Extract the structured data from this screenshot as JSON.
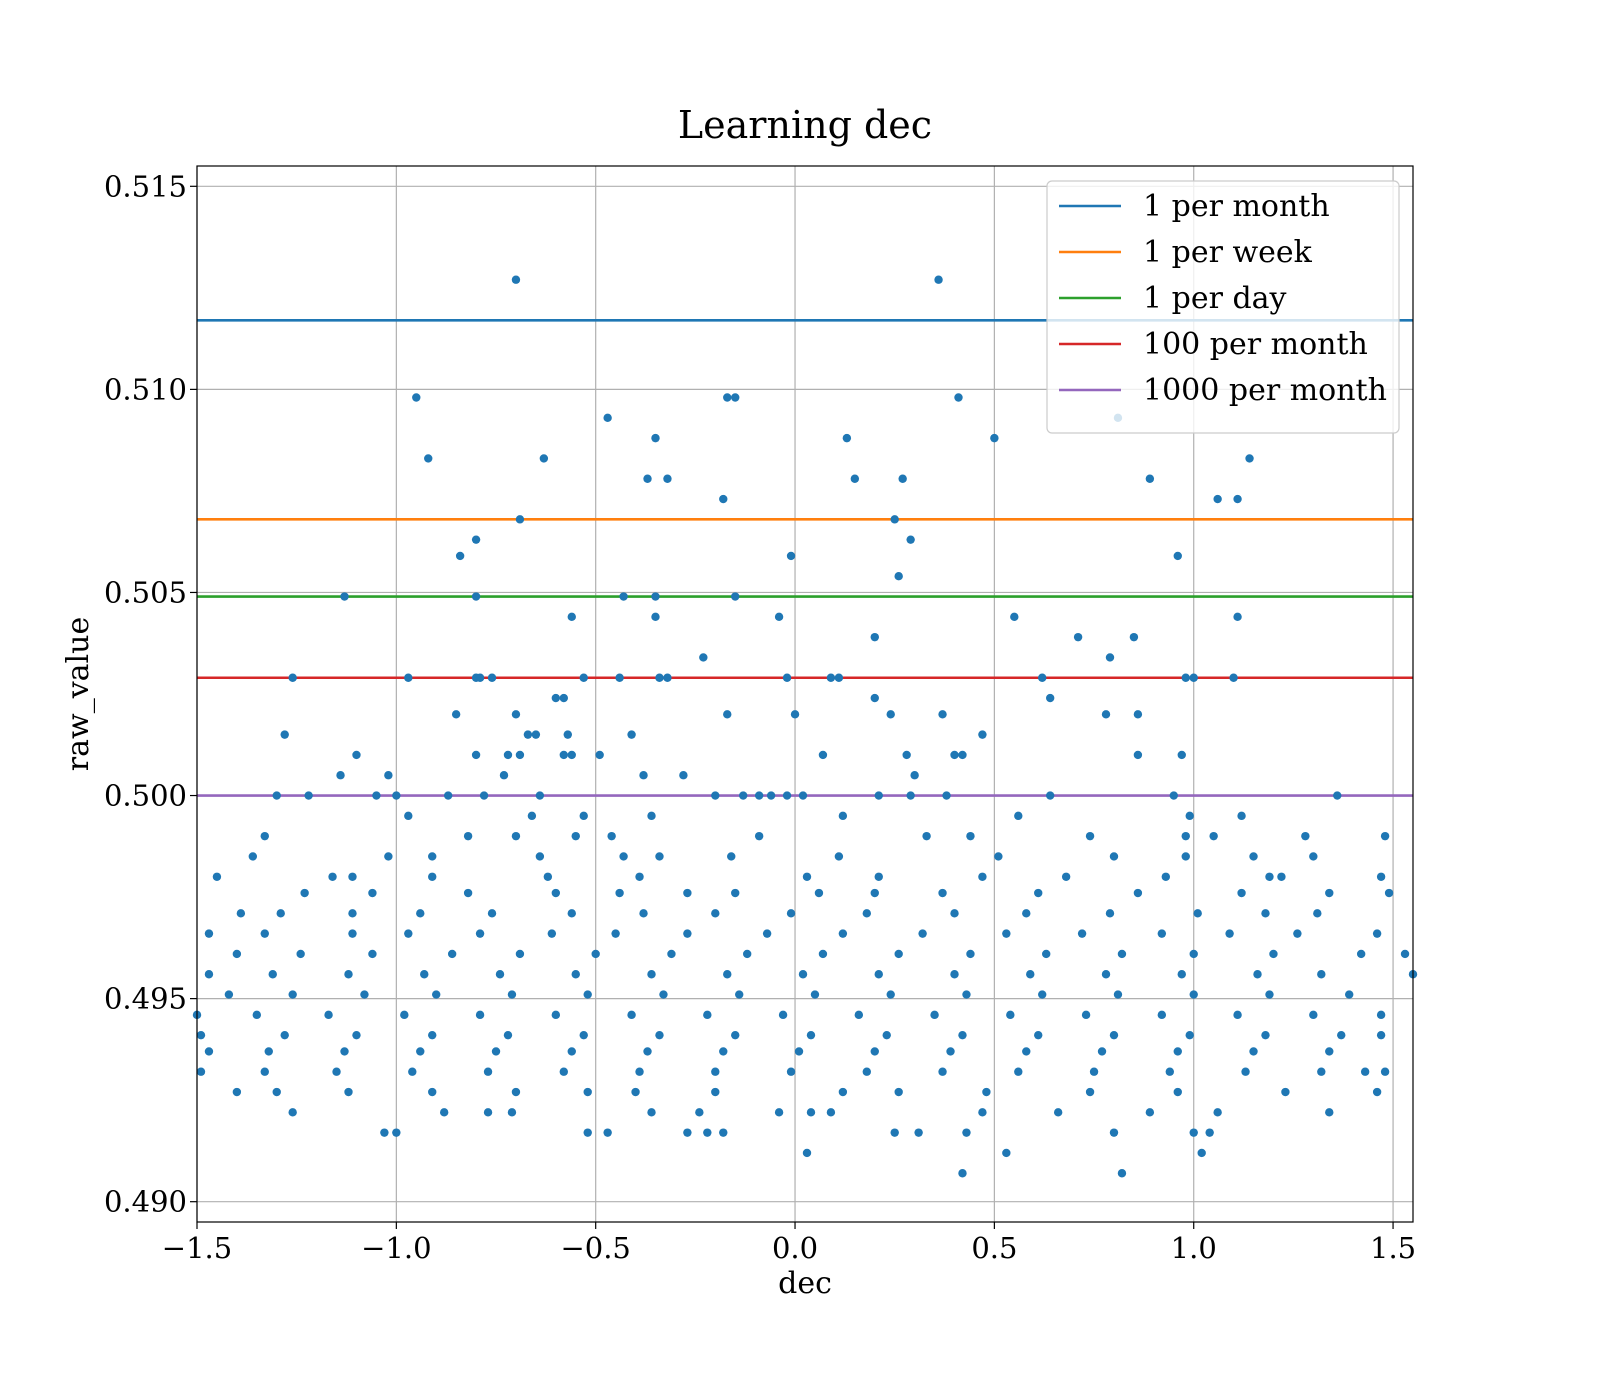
{
  "chart_data": {
    "type": "scatter",
    "title": "Learning dec",
    "xlabel": "dec",
    "ylabel": "raw_value",
    "xlim": [
      -1.5,
      1.55
    ],
    "ylim": [
      0.4895,
      0.5155
    ],
    "grid": true,
    "xticks": [
      -1.5,
      -1.0,
      -0.5,
      0.0,
      0.5,
      1.0,
      1.5
    ],
    "xtick_labels": [
      "−1.5",
      "−1.0",
      "−0.5",
      "0.0",
      "0.5",
      "1.0",
      "1.5"
    ],
    "yticks": [
      0.49,
      0.495,
      0.5,
      0.505,
      0.51,
      0.515
    ],
    "ytick_labels": [
      "0.490",
      "0.495",
      "0.500",
      "0.505",
      "0.510",
      "0.515"
    ],
    "legend_placement": "top-right",
    "scatter_color": "#1f77b4",
    "hlines": [
      {
        "name": "1 per month",
        "y": 0.5117,
        "color": "#1f77b4"
      },
      {
        "name": "1 per week",
        "y": 0.5068,
        "color": "#ff7f0e"
      },
      {
        "name": "1 per day",
        "y": 0.5049,
        "color": "#2ca02c"
      },
      {
        "name": "100 per month",
        "y": 0.5029,
        "color": "#d62728"
      },
      {
        "name": "1000 per month",
        "y": 0.5,
        "color": "#9467bd"
      }
    ],
    "points": [
      [
        -0.7,
        0.5127
      ],
      [
        0.36,
        0.5127
      ],
      [
        -0.95,
        0.5098
      ],
      [
        -0.17,
        0.5098
      ],
      [
        -0.15,
        0.5098
      ],
      [
        0.41,
        0.5098
      ],
      [
        -0.47,
        0.5093
      ],
      [
        0.81,
        0.5093
      ],
      [
        -0.35,
        0.5088
      ],
      [
        0.13,
        0.5088
      ],
      [
        0.5,
        0.5088
      ],
      [
        -0.92,
        0.5083
      ],
      [
        -0.63,
        0.5083
      ],
      [
        1.14,
        0.5083
      ],
      [
        -0.37,
        0.5078
      ],
      [
        -0.32,
        0.5078
      ],
      [
        0.15,
        0.5078
      ],
      [
        0.27,
        0.5078
      ],
      [
        0.89,
        0.5078
      ],
      [
        -0.18,
        0.5073
      ],
      [
        1.06,
        0.5073
      ],
      [
        1.11,
        0.5073
      ],
      [
        -0.69,
        0.5068
      ],
      [
        0.25,
        0.5068
      ],
      [
        -0.8,
        0.5063
      ],
      [
        0.29,
        0.5063
      ],
      [
        -0.84,
        0.5059
      ],
      [
        -0.01,
        0.5059
      ],
      [
        0.96,
        0.5059
      ],
      [
        0.26,
        0.5054
      ],
      [
        -1.13,
        0.5049
      ],
      [
        -0.8,
        0.5049
      ],
      [
        -0.43,
        0.5049
      ],
      [
        -0.35,
        0.5049
      ],
      [
        -0.15,
        0.5049
      ],
      [
        -0.56,
        0.5044
      ],
      [
        -0.35,
        0.5044
      ],
      [
        -0.04,
        0.5044
      ],
      [
        0.55,
        0.5044
      ],
      [
        1.11,
        0.5044
      ],
      [
        0.2,
        0.5039
      ],
      [
        0.71,
        0.5039
      ],
      [
        0.85,
        0.5039
      ],
      [
        -0.23,
        0.5034
      ],
      [
        0.79,
        0.5034
      ],
      [
        -1.26,
        0.5029
      ],
      [
        -0.97,
        0.5029
      ],
      [
        -0.8,
        0.5029
      ],
      [
        -0.79,
        0.5029
      ],
      [
        -0.76,
        0.5029
      ],
      [
        -0.53,
        0.5029
      ],
      [
        -0.44,
        0.5029
      ],
      [
        -0.34,
        0.5029
      ],
      [
        -0.32,
        0.5029
      ],
      [
        -0.02,
        0.5029
      ],
      [
        0.09,
        0.5029
      ],
      [
        0.11,
        0.5029
      ],
      [
        0.62,
        0.5029
      ],
      [
        0.98,
        0.5029
      ],
      [
        1.0,
        0.5029
      ],
      [
        1.1,
        0.5029
      ],
      [
        -0.6,
        0.5024
      ],
      [
        -0.58,
        0.5024
      ],
      [
        0.2,
        0.5024
      ],
      [
        0.64,
        0.5024
      ],
      [
        -0.85,
        0.502
      ],
      [
        -0.7,
        0.502
      ],
      [
        -0.17,
        0.502
      ],
      [
        0.0,
        0.502
      ],
      [
        0.24,
        0.502
      ],
      [
        0.37,
        0.502
      ],
      [
        0.78,
        0.502
      ],
      [
        0.86,
        0.502
      ],
      [
        -1.28,
        0.5015
      ],
      [
        -0.67,
        0.5015
      ],
      [
        -0.65,
        0.5015
      ],
      [
        -0.57,
        0.5015
      ],
      [
        -0.41,
        0.5015
      ],
      [
        0.47,
        0.5015
      ],
      [
        -1.1,
        0.501
      ],
      [
        -0.8,
        0.501
      ],
      [
        -0.72,
        0.501
      ],
      [
        -0.69,
        0.501
      ],
      [
        -0.58,
        0.501
      ],
      [
        -0.56,
        0.501
      ],
      [
        -0.49,
        0.501
      ],
      [
        0.07,
        0.501
      ],
      [
        0.28,
        0.501
      ],
      [
        0.4,
        0.501
      ],
      [
        0.42,
        0.501
      ],
      [
        0.86,
        0.501
      ],
      [
        0.97,
        0.501
      ],
      [
        -1.14,
        0.5005
      ],
      [
        -1.02,
        0.5005
      ],
      [
        -0.73,
        0.5005
      ],
      [
        -0.38,
        0.5005
      ],
      [
        -0.28,
        0.5005
      ],
      [
        0.3,
        0.5005
      ],
      [
        -1.3,
        0.5
      ],
      [
        -1.22,
        0.5
      ],
      [
        -1.05,
        0.5
      ],
      [
        -1.0,
        0.5
      ],
      [
        -0.87,
        0.5
      ],
      [
        -0.78,
        0.5
      ],
      [
        -0.64,
        0.5
      ],
      [
        -0.2,
        0.5
      ],
      [
        -0.13,
        0.5
      ],
      [
        -0.09,
        0.5
      ],
      [
        -0.06,
        0.5
      ],
      [
        -0.02,
        0.5
      ],
      [
        0.02,
        0.5
      ],
      [
        0.21,
        0.5
      ],
      [
        0.29,
        0.5
      ],
      [
        0.38,
        0.5
      ],
      [
        0.64,
        0.5
      ],
      [
        0.95,
        0.5
      ],
      [
        1.36,
        0.5
      ],
      [
        -0.97,
        0.4995
      ],
      [
        -0.66,
        0.4995
      ],
      [
        -0.53,
        0.4995
      ],
      [
        -0.36,
        0.4995
      ],
      [
        0.12,
        0.4995
      ],
      [
        0.56,
        0.4995
      ],
      [
        0.99,
        0.4995
      ],
      [
        1.12,
        0.4995
      ],
      [
        -1.33,
        0.499
      ],
      [
        -0.82,
        0.499
      ],
      [
        -0.7,
        0.499
      ],
      [
        -0.55,
        0.499
      ],
      [
        -0.46,
        0.499
      ],
      [
        -0.09,
        0.499
      ],
      [
        0.33,
        0.499
      ],
      [
        0.44,
        0.499
      ],
      [
        0.74,
        0.499
      ],
      [
        0.98,
        0.499
      ],
      [
        1.05,
        0.499
      ],
      [
        1.28,
        0.499
      ],
      [
        1.48,
        0.499
      ],
      [
        -1.36,
        0.4985
      ],
      [
        -1.02,
        0.4985
      ],
      [
        -0.91,
        0.4985
      ],
      [
        -0.64,
        0.4985
      ],
      [
        -0.43,
        0.4985
      ],
      [
        -0.34,
        0.4985
      ],
      [
        -0.16,
        0.4985
      ],
      [
        0.11,
        0.4985
      ],
      [
        0.51,
        0.4985
      ],
      [
        0.8,
        0.4985
      ],
      [
        0.98,
        0.4985
      ],
      [
        1.15,
        0.4985
      ],
      [
        1.3,
        0.4985
      ],
      [
        -1.45,
        0.498
      ],
      [
        -1.16,
        0.498
      ],
      [
        -1.11,
        0.498
      ],
      [
        -0.91,
        0.498
      ],
      [
        -0.62,
        0.498
      ],
      [
        -0.39,
        0.498
      ],
      [
        0.03,
        0.498
      ],
      [
        0.21,
        0.498
      ],
      [
        0.47,
        0.498
      ],
      [
        0.68,
        0.498
      ],
      [
        0.93,
        0.498
      ],
      [
        1.19,
        0.498
      ],
      [
        1.22,
        0.498
      ],
      [
        1.47,
        0.498
      ],
      [
        -1.23,
        0.4976
      ],
      [
        -1.06,
        0.4976
      ],
      [
        -0.82,
        0.4976
      ],
      [
        -0.6,
        0.4976
      ],
      [
        -0.44,
        0.4976
      ],
      [
        -0.27,
        0.4976
      ],
      [
        -0.15,
        0.4976
      ],
      [
        0.06,
        0.4976
      ],
      [
        0.2,
        0.4976
      ],
      [
        0.37,
        0.4976
      ],
      [
        0.61,
        0.4976
      ],
      [
        0.86,
        0.4976
      ],
      [
        1.12,
        0.4976
      ],
      [
        1.34,
        0.4976
      ],
      [
        1.49,
        0.4976
      ],
      [
        -1.39,
        0.4971
      ],
      [
        -1.29,
        0.4971
      ],
      [
        -1.11,
        0.4971
      ],
      [
        -0.94,
        0.4971
      ],
      [
        -0.76,
        0.4971
      ],
      [
        -0.56,
        0.4971
      ],
      [
        -0.38,
        0.4971
      ],
      [
        -0.2,
        0.4971
      ],
      [
        -0.01,
        0.4971
      ],
      [
        0.18,
        0.4971
      ],
      [
        0.4,
        0.4971
      ],
      [
        0.58,
        0.4971
      ],
      [
        0.79,
        0.4971
      ],
      [
        1.01,
        0.4971
      ],
      [
        1.18,
        0.4971
      ],
      [
        1.31,
        0.4971
      ],
      [
        -1.47,
        0.4966
      ],
      [
        -1.33,
        0.4966
      ],
      [
        -1.11,
        0.4966
      ],
      [
        -0.97,
        0.4966
      ],
      [
        -0.79,
        0.4966
      ],
      [
        -0.61,
        0.4966
      ],
      [
        -0.45,
        0.4966
      ],
      [
        -0.27,
        0.4966
      ],
      [
        -0.07,
        0.4966
      ],
      [
        0.12,
        0.4966
      ],
      [
        0.32,
        0.4966
      ],
      [
        0.53,
        0.4966
      ],
      [
        0.72,
        0.4966
      ],
      [
        0.92,
        0.4966
      ],
      [
        1.09,
        0.4966
      ],
      [
        1.26,
        0.4966
      ],
      [
        1.46,
        0.4966
      ],
      [
        -1.4,
        0.4961
      ],
      [
        -1.24,
        0.4961
      ],
      [
        -1.06,
        0.4961
      ],
      [
        -0.86,
        0.4961
      ],
      [
        -0.69,
        0.4961
      ],
      [
        -0.5,
        0.4961
      ],
      [
        -0.31,
        0.4961
      ],
      [
        -0.12,
        0.4961
      ],
      [
        0.07,
        0.4961
      ],
      [
        0.26,
        0.4961
      ],
      [
        0.44,
        0.4961
      ],
      [
        0.63,
        0.4961
      ],
      [
        0.82,
        0.4961
      ],
      [
        1.0,
        0.4961
      ],
      [
        1.2,
        0.4961
      ],
      [
        1.42,
        0.4961
      ],
      [
        1.53,
        0.4961
      ],
      [
        -1.47,
        0.4956
      ],
      [
        -1.31,
        0.4956
      ],
      [
        -1.12,
        0.4956
      ],
      [
        -0.93,
        0.4956
      ],
      [
        -0.74,
        0.4956
      ],
      [
        -0.55,
        0.4956
      ],
      [
        -0.36,
        0.4956
      ],
      [
        -0.17,
        0.4956
      ],
      [
        0.02,
        0.4956
      ],
      [
        0.21,
        0.4956
      ],
      [
        0.4,
        0.4956
      ],
      [
        0.59,
        0.4956
      ],
      [
        0.78,
        0.4956
      ],
      [
        0.97,
        0.4956
      ],
      [
        1.16,
        0.4956
      ],
      [
        1.32,
        0.4956
      ],
      [
        1.55,
        0.4956
      ],
      [
        -1.42,
        0.4951
      ],
      [
        -1.26,
        0.4951
      ],
      [
        -1.08,
        0.4951
      ],
      [
        -0.9,
        0.4951
      ],
      [
        -0.71,
        0.4951
      ],
      [
        -0.52,
        0.4951
      ],
      [
        -0.33,
        0.4951
      ],
      [
        -0.14,
        0.4951
      ],
      [
        0.05,
        0.4951
      ],
      [
        0.24,
        0.4951
      ],
      [
        0.43,
        0.4951
      ],
      [
        0.62,
        0.4951
      ],
      [
        0.81,
        0.4951
      ],
      [
        1.0,
        0.4951
      ],
      [
        1.19,
        0.4951
      ],
      [
        1.39,
        0.4951
      ],
      [
        -1.5,
        0.4946
      ],
      [
        -1.35,
        0.4946
      ],
      [
        -1.17,
        0.4946
      ],
      [
        -0.98,
        0.4946
      ],
      [
        -0.79,
        0.4946
      ],
      [
        -0.6,
        0.4946
      ],
      [
        -0.41,
        0.4946
      ],
      [
        -0.22,
        0.4946
      ],
      [
        -0.03,
        0.4946
      ],
      [
        0.16,
        0.4946
      ],
      [
        0.35,
        0.4946
      ],
      [
        0.54,
        0.4946
      ],
      [
        0.73,
        0.4946
      ],
      [
        0.92,
        0.4946
      ],
      [
        1.11,
        0.4946
      ],
      [
        1.3,
        0.4946
      ],
      [
        1.47,
        0.4946
      ],
      [
        -1.49,
        0.4941
      ],
      [
        -1.28,
        0.4941
      ],
      [
        -1.1,
        0.4941
      ],
      [
        -0.91,
        0.4941
      ],
      [
        -0.72,
        0.4941
      ],
      [
        -0.53,
        0.4941
      ],
      [
        -0.34,
        0.4941
      ],
      [
        -0.15,
        0.4941
      ],
      [
        0.04,
        0.4941
      ],
      [
        0.23,
        0.4941
      ],
      [
        0.42,
        0.4941
      ],
      [
        0.61,
        0.4941
      ],
      [
        0.8,
        0.4941
      ],
      [
        0.99,
        0.4941
      ],
      [
        1.18,
        0.4941
      ],
      [
        1.37,
        0.4941
      ],
      [
        1.47,
        0.4941
      ],
      [
        -1.47,
        0.4937
      ],
      [
        -1.32,
        0.4937
      ],
      [
        -1.13,
        0.4937
      ],
      [
        -0.94,
        0.4937
      ],
      [
        -0.75,
        0.4937
      ],
      [
        -0.56,
        0.4937
      ],
      [
        -0.37,
        0.4937
      ],
      [
        -0.18,
        0.4937
      ],
      [
        0.01,
        0.4937
      ],
      [
        0.2,
        0.4937
      ],
      [
        0.39,
        0.4937
      ],
      [
        0.58,
        0.4937
      ],
      [
        0.77,
        0.4937
      ],
      [
        0.96,
        0.4937
      ],
      [
        1.15,
        0.4937
      ],
      [
        1.34,
        0.4937
      ],
      [
        -1.49,
        0.4932
      ],
      [
        -1.33,
        0.4932
      ],
      [
        -1.15,
        0.4932
      ],
      [
        -0.96,
        0.4932
      ],
      [
        -0.77,
        0.4932
      ],
      [
        -0.58,
        0.4932
      ],
      [
        -0.39,
        0.4932
      ],
      [
        -0.2,
        0.4932
      ],
      [
        -0.01,
        0.4932
      ],
      [
        0.18,
        0.4932
      ],
      [
        0.37,
        0.4932
      ],
      [
        0.56,
        0.4932
      ],
      [
        0.75,
        0.4932
      ],
      [
        0.94,
        0.4932
      ],
      [
        1.13,
        0.4932
      ],
      [
        1.32,
        0.4932
      ],
      [
        1.43,
        0.4932
      ],
      [
        1.48,
        0.4932
      ],
      [
        -1.4,
        0.4927
      ],
      [
        -1.3,
        0.4927
      ],
      [
        -1.12,
        0.4927
      ],
      [
        -0.91,
        0.4927
      ],
      [
        -0.7,
        0.4927
      ],
      [
        -0.52,
        0.4927
      ],
      [
        -0.4,
        0.4927
      ],
      [
        -0.2,
        0.4927
      ],
      [
        0.12,
        0.4927
      ],
      [
        0.26,
        0.4927
      ],
      [
        0.48,
        0.4927
      ],
      [
        0.74,
        0.4927
      ],
      [
        0.96,
        0.4927
      ],
      [
        1.23,
        0.4927
      ],
      [
        1.46,
        0.4927
      ],
      [
        -1.26,
        0.4922
      ],
      [
        -0.88,
        0.4922
      ],
      [
        -0.77,
        0.4922
      ],
      [
        -0.71,
        0.4922
      ],
      [
        -0.36,
        0.4922
      ],
      [
        -0.24,
        0.4922
      ],
      [
        -0.04,
        0.4922
      ],
      [
        0.04,
        0.4922
      ],
      [
        0.09,
        0.4922
      ],
      [
        0.47,
        0.4922
      ],
      [
        0.66,
        0.4922
      ],
      [
        0.89,
        0.4922
      ],
      [
        1.06,
        0.4922
      ],
      [
        1.34,
        0.4922
      ],
      [
        -1.03,
        0.4917
      ],
      [
        -1.0,
        0.4917
      ],
      [
        -0.52,
        0.4917
      ],
      [
        -0.47,
        0.4917
      ],
      [
        -0.27,
        0.4917
      ],
      [
        -0.22,
        0.4917
      ],
      [
        -0.18,
        0.4917
      ],
      [
        0.25,
        0.4917
      ],
      [
        0.31,
        0.4917
      ],
      [
        0.43,
        0.4917
      ],
      [
        0.8,
        0.4917
      ],
      [
        1.0,
        0.4917
      ],
      [
        1.04,
        0.4917
      ],
      [
        0.03,
        0.4912
      ],
      [
        0.53,
        0.4912
      ],
      [
        1.02,
        0.4912
      ],
      [
        0.42,
        0.4907
      ],
      [
        0.82,
        0.4907
      ]
    ]
  }
}
